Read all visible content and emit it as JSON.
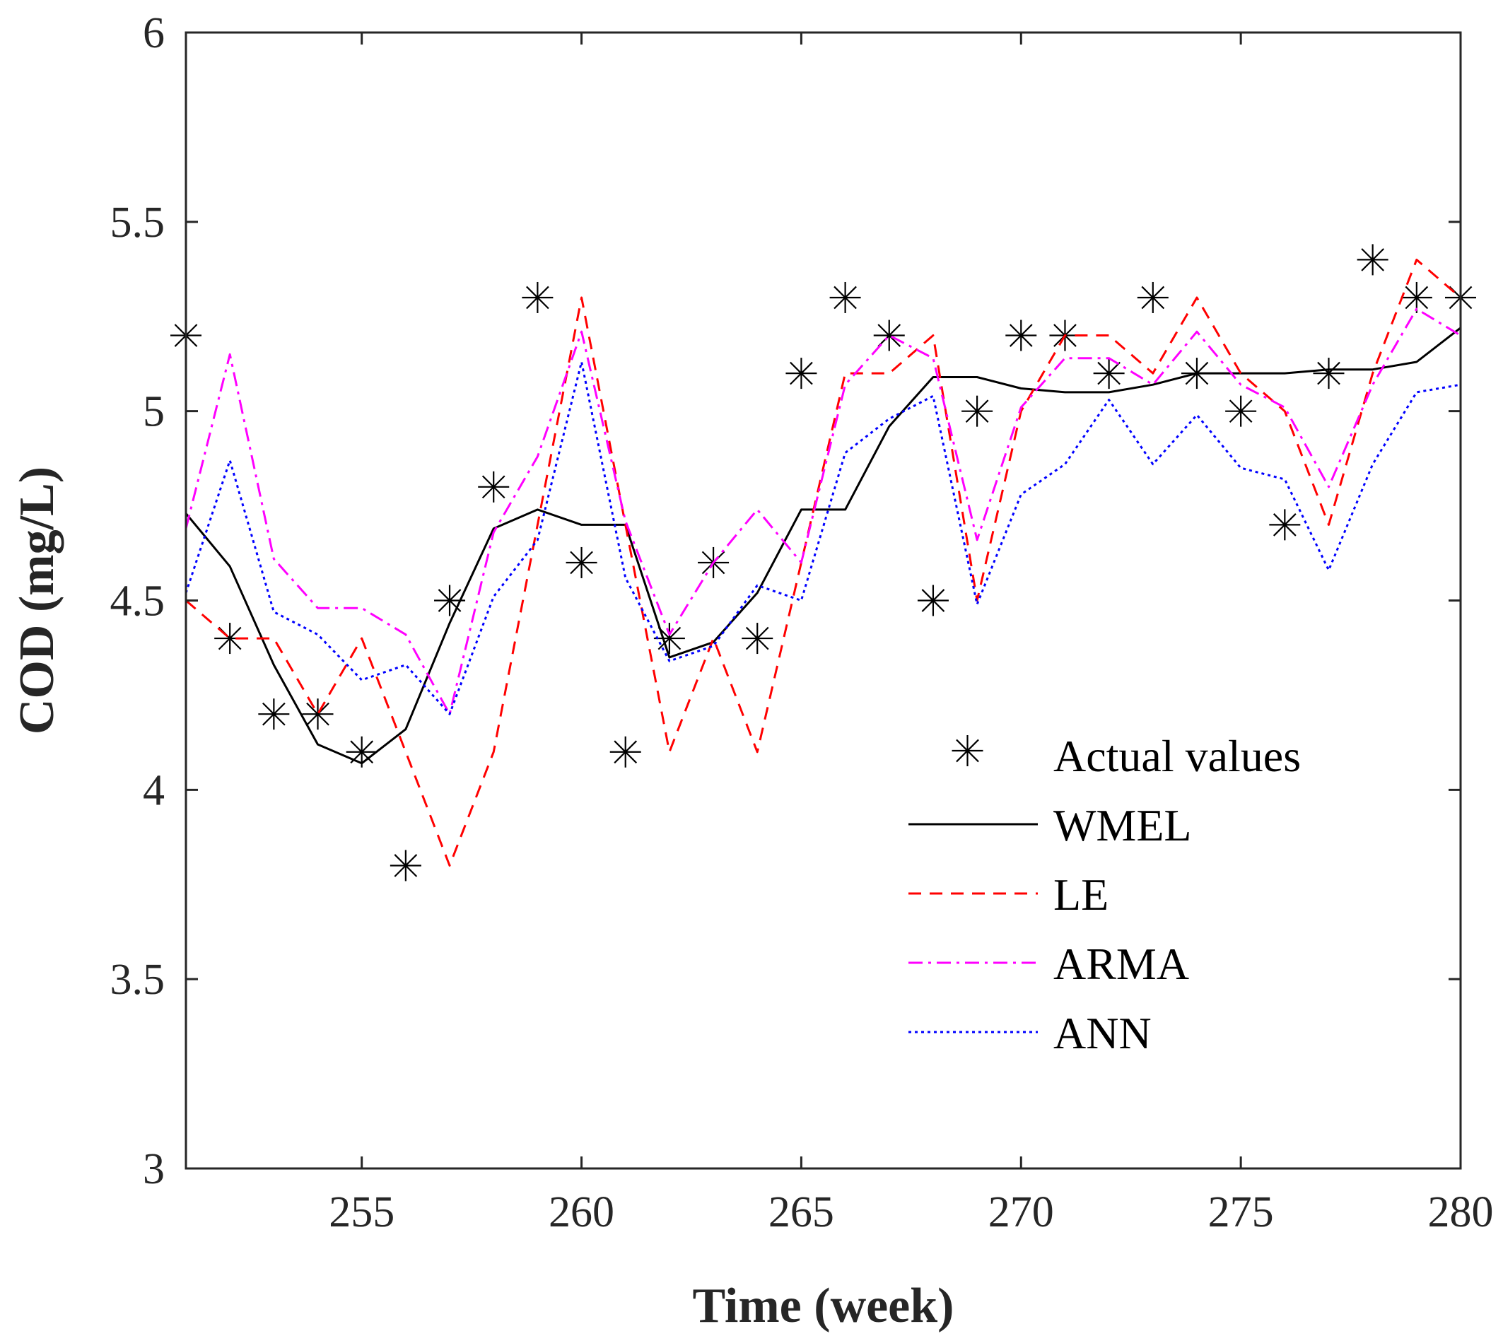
{
  "chart_data": {
    "type": "line",
    "title": "",
    "xlabel": "Time (week)",
    "ylabel": "COD (mg/L)",
    "xlim": [
      251,
      280
    ],
    "ylim": [
      3,
      6
    ],
    "xticks": [
      255,
      260,
      265,
      270,
      275,
      280
    ],
    "yticks": [
      3,
      3.5,
      4,
      4.5,
      5,
      5.5,
      6
    ],
    "x": [
      251,
      252,
      253,
      254,
      255,
      256,
      257,
      258,
      259,
      260,
      261,
      262,
      263,
      264,
      265,
      266,
      267,
      268,
      269,
      270,
      271,
      272,
      273,
      274,
      275,
      276,
      277,
      278,
      279,
      280
    ],
    "grid": false,
    "legend_position": "bottom-right",
    "series": [
      {
        "name": "Actual values",
        "style": "markers",
        "marker": "asterisk",
        "color": "#000000",
        "values": [
          5.2,
          4.4,
          4.2,
          4.2,
          4.1,
          3.8,
          4.5,
          4.8,
          5.3,
          4.6,
          4.1,
          4.4,
          4.6,
          4.4,
          5.1,
          5.3,
          5.2,
          4.5,
          5.0,
          5.2,
          5.2,
          5.1,
          5.3,
          5.1,
          5.0,
          4.7,
          5.1,
          5.4,
          5.3,
          5.3
        ]
      },
      {
        "name": "WMEL",
        "style": "solid",
        "color": "#000000",
        "values": [
          4.73,
          4.59,
          4.33,
          4.12,
          4.07,
          4.16,
          4.44,
          4.69,
          4.74,
          4.7,
          4.7,
          4.35,
          4.39,
          4.52,
          4.74,
          4.74,
          4.96,
          5.09,
          5.09,
          5.06,
          5.05,
          5.05,
          5.07,
          5.1,
          5.1,
          5.1,
          5.11,
          5.11,
          5.13,
          5.22
        ]
      },
      {
        "name": "LE",
        "style": "dashed",
        "color": "#ff0000",
        "values": [
          4.5,
          4.4,
          4.4,
          4.2,
          4.4,
          4.1,
          3.8,
          4.1,
          4.7,
          5.3,
          4.7,
          4.1,
          4.4,
          4.1,
          4.6,
          5.1,
          5.1,
          5.2,
          4.5,
          5.0,
          5.2,
          5.2,
          5.1,
          5.3,
          5.1,
          5.0,
          4.7,
          5.1,
          5.4,
          5.3
        ]
      },
      {
        "name": "ARMA",
        "style": "dashdot",
        "color": "#ff00ff",
        "values": [
          4.69,
          5.15,
          4.61,
          4.48,
          4.48,
          4.41,
          4.2,
          4.68,
          4.88,
          5.21,
          4.71,
          4.41,
          4.6,
          4.74,
          4.6,
          5.07,
          5.2,
          5.14,
          4.66,
          5.01,
          5.14,
          5.14,
          5.07,
          5.21,
          5.07,
          5.01,
          4.8,
          5.07,
          5.27,
          5.2
        ]
      },
      {
        "name": "ANN",
        "style": "dotted",
        "color": "#0000ff",
        "values": [
          4.52,
          4.87,
          4.47,
          4.41,
          4.29,
          4.33,
          4.2,
          4.51,
          4.66,
          5.13,
          4.56,
          4.34,
          4.38,
          4.54,
          4.5,
          4.89,
          4.98,
          5.04,
          4.49,
          4.78,
          4.86,
          5.03,
          4.86,
          4.99,
          4.85,
          4.82,
          4.58,
          4.86,
          5.05,
          5.07
        ]
      }
    ]
  }
}
